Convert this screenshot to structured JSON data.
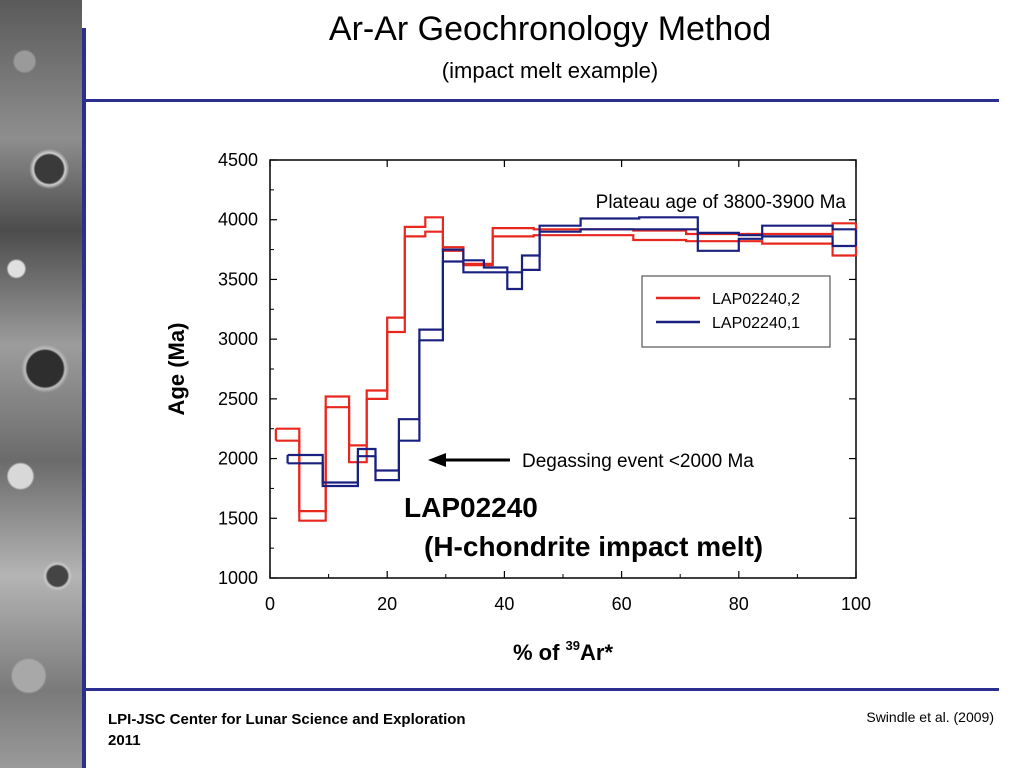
{
  "slide": {
    "title": "Ar-Ar Geochronology Method",
    "subtitle": "(impact melt example)",
    "footer_left_line1": "LPI-JSC Center for Lunar Science and Exploration",
    "footer_left_line2": "2011",
    "footer_right": "Swindle et al. (2009)"
  },
  "colors": {
    "rule": "#2b2f8f",
    "red": "#e8281f",
    "blue": "#1a2080"
  },
  "chart_data": {
    "type": "line",
    "title": "",
    "xlabel": "% of 39Ar*",
    "xlabel_prefix": "% of ",
    "xlabel_sup": "39",
    "xlabel_suffix": "Ar*",
    "ylabel": "Age (Ma)",
    "xlim": [
      0,
      100
    ],
    "ylim": [
      1000,
      4500
    ],
    "xticks": [
      "0",
      "20",
      "40",
      "60",
      "80",
      "100"
    ],
    "yticks": [
      "1000",
      "1500",
      "2000",
      "2500",
      "3000",
      "3500",
      "4000",
      "4500"
    ],
    "legend_position": "right",
    "annotations": {
      "plateau": "Plateau age of 3800-3900 Ma",
      "degassing": "Degassing event <2000 Ma",
      "sample_name": "LAP02240",
      "sample_type": "(H-chondrite impact melt)"
    },
    "series": [
      {
        "name": "LAP02240,2",
        "color": "#e8281f",
        "steps": [
          [
            1,
            5,
            2150,
            2250
          ],
          [
            5,
            9.5,
            1480,
            1560
          ],
          [
            9.5,
            13.5,
            2430,
            2520
          ],
          [
            13.5,
            16.5,
            1970,
            2110
          ],
          [
            16.5,
            20,
            2500,
            2570
          ],
          [
            20,
            23,
            3060,
            3180
          ],
          [
            23,
            26.5,
            3860,
            3940
          ],
          [
            26.5,
            29.5,
            3900,
            4020
          ],
          [
            29.5,
            33,
            3740,
            3770
          ],
          [
            33,
            38,
            3620,
            3630
          ],
          [
            38,
            45,
            3860,
            3930
          ],
          [
            45,
            54,
            3870,
            3920
          ],
          [
            54,
            62,
            3870,
            3920
          ],
          [
            62,
            71,
            3830,
            3910
          ],
          [
            71,
            84,
            3820,
            3880
          ],
          [
            84,
            96,
            3800,
            3880
          ],
          [
            96,
            100,
            3700,
            3970
          ]
        ]
      },
      {
        "name": "LAP02240,1",
        "color": "#1a2080",
        "steps": [
          [
            3,
            9,
            1960,
            2030
          ],
          [
            9,
            15,
            1770,
            1800
          ],
          [
            15,
            18,
            2020,
            2080
          ],
          [
            18,
            22,
            1820,
            1900
          ],
          [
            22,
            25.5,
            2150,
            2330
          ],
          [
            25.5,
            29.5,
            2990,
            3080
          ],
          [
            29.5,
            33,
            3650,
            3750
          ],
          [
            33,
            36.5,
            3560,
            3660
          ],
          [
            36.5,
            40.5,
            3560,
            3600
          ],
          [
            40.5,
            43,
            3420,
            3560
          ],
          [
            43,
            46,
            3580,
            3700
          ],
          [
            46,
            53,
            3900,
            3950
          ],
          [
            53,
            63,
            3920,
            4010
          ],
          [
            63,
            73,
            3920,
            4020
          ],
          [
            73,
            80,
            3740,
            3890
          ],
          [
            80,
            84,
            3840,
            3870
          ],
          [
            84,
            96,
            3860,
            3950
          ],
          [
            96,
            100,
            3780,
            3920
          ]
        ]
      }
    ]
  }
}
